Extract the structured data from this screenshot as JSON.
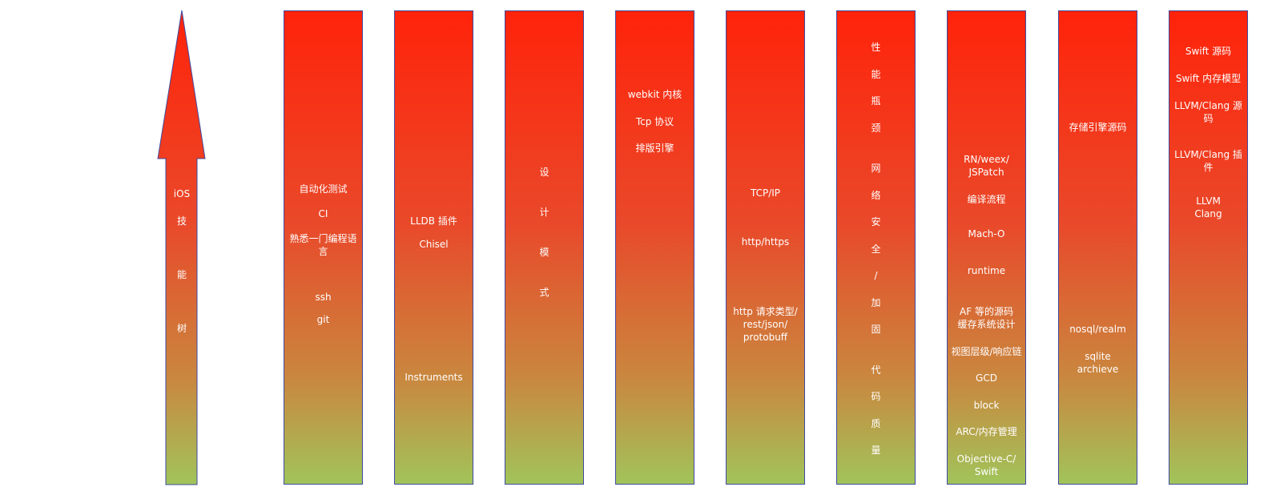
{
  "arrow": {
    "label": [
      "iOS",
      "技",
      "能",
      "树"
    ]
  },
  "columns": [
    {
      "id": "automation",
      "items": [
        "自动化测试",
        "CI",
        "熟悉一门编程语言",
        "ssh",
        "git"
      ]
    },
    {
      "id": "debugging",
      "items": [
        "LLDB 插件",
        "Chisel",
        "Instruments"
      ]
    },
    {
      "id": "design-pattern",
      "items": [
        "设",
        "计",
        "模",
        "式"
      ]
    },
    {
      "id": "webkit",
      "items": [
        "webkit 内核",
        "Tcp 协议",
        "排版引擎"
      ]
    },
    {
      "id": "network",
      "items": [
        "TCP/IP",
        "http/https",
        "http 请求类型/ rest/json/ protobuff"
      ]
    },
    {
      "id": "quality",
      "items": [
        "性",
        "能",
        "瓶",
        "颈",
        "网",
        "络",
        "安",
        "全",
        "/",
        "加",
        "固",
        "代",
        "码",
        "质",
        "量"
      ]
    },
    {
      "id": "runtime",
      "items": [
        "RN/weex/ JSPatch",
        "编译流程",
        "Mach-O",
        "runtime",
        "AF 等的源码 缓存系统设计",
        "视图层级/响应链",
        "GCD",
        "block",
        "ARC/内存管理",
        "Objective-C/ Swift"
      ]
    },
    {
      "id": "storage",
      "items": [
        "存储引擎源码",
        "nosql/realm",
        "sqlite archieve"
      ]
    },
    {
      "id": "compiler",
      "items": [
        "Swift 源码",
        "Swift 内存模型",
        "LLVM/Clang 源码",
        "LLVM/Clang 插件",
        "LLVM Clang"
      ]
    }
  ],
  "colors": {
    "gradient_top": "#ff230a",
    "gradient_mid": "#e9492a",
    "gradient_bottom": "#a1c45a",
    "border": "#3f4aa0",
    "text": "#ffffff"
  }
}
